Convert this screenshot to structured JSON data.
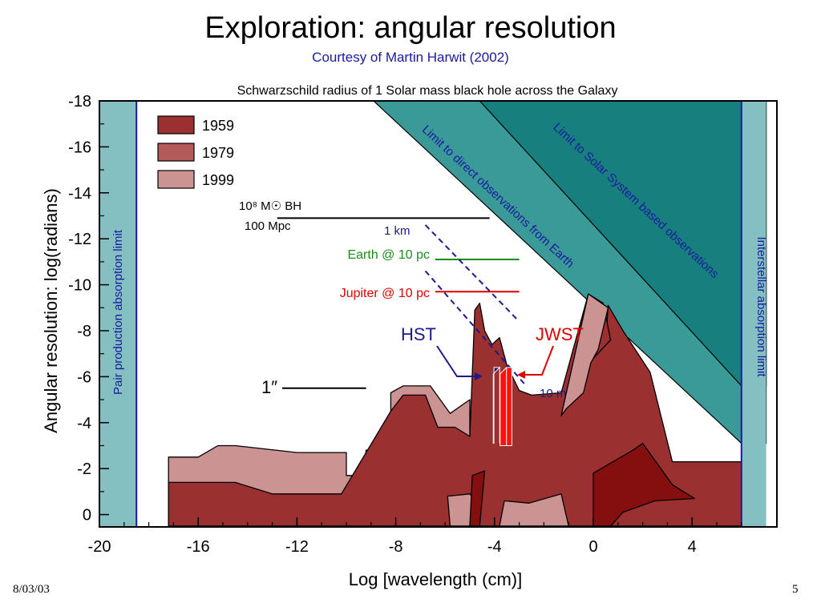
{
  "slide": {
    "title": "Exploration: angular resolution",
    "subtitle": "Courtesy of Martin Harwit (2002)",
    "date": "8/03/03",
    "page": "5"
  },
  "chart_data": {
    "type": "area",
    "title": "Schwarzschild radius of 1 Solar mass black hole across the Galaxy",
    "xlabel": "Log [wavelength (cm)]",
    "ylabel": "Angular resolution: log(radians)",
    "xlim": [
      -20,
      7
    ],
    "ylim": [
      0.5,
      -18
    ],
    "xticks": [
      "-20",
      "-16",
      "-12",
      "-8",
      "-4",
      "0",
      "4"
    ],
    "yticks": [
      "-18",
      "-16",
      "-14",
      "-12",
      "-10",
      "-8",
      "-6",
      "-4",
      "-2",
      "0"
    ],
    "legend_placement": "top-left",
    "legend": [
      {
        "label": "1959",
        "color": "#9b3030"
      },
      {
        "label": "1979",
        "color": "#b35a5a"
      },
      {
        "label": "1999",
        "color": "#cc9393"
      }
    ],
    "series": [
      {
        "name": "1999",
        "color": "#cc9393",
        "points": [
          [
            -17.2,
            0.5
          ],
          [
            -17.2,
            -2.5
          ],
          [
            -16,
            -2.5
          ],
          [
            -15.2,
            -3
          ],
          [
            -14.5,
            -3
          ],
          [
            -12,
            -2.7
          ],
          [
            -10,
            -2.7
          ],
          [
            -10,
            -1.7
          ],
          [
            -9.3,
            -1.7
          ],
          [
            -9.2,
            -2.8
          ],
          [
            -8.2,
            -2.8
          ],
          [
            -8.2,
            -5.3
          ],
          [
            -7.7,
            -5.6
          ],
          [
            -6.6,
            -5.6
          ],
          [
            -5.8,
            -4.4
          ],
          [
            -5,
            -5
          ],
          [
            -5,
            0.5
          ]
        ]
      },
      {
        "name": "1979",
        "color": "#9b3030",
        "points": [
          [
            -17.2,
            0.5
          ],
          [
            -17.2,
            -1.4
          ],
          [
            -14.5,
            -1.4
          ],
          [
            -13,
            -0.9
          ],
          [
            -10.2,
            -0.9
          ],
          [
            -8.2,
            -4.5
          ],
          [
            -7.7,
            -5.2
          ],
          [
            -6.8,
            -5.2
          ],
          [
            -6.3,
            -3.8
          ],
          [
            -5.6,
            -3.8
          ],
          [
            -5,
            -3.4
          ],
          [
            -4.8,
            -8.9
          ],
          [
            -4.6,
            -9.2
          ],
          [
            -4.4,
            -8
          ],
          [
            -4.2,
            -7.6
          ],
          [
            -4.1,
            -7.4
          ],
          [
            -3.8,
            -7.7
          ],
          [
            -3.5,
            -6.5
          ],
          [
            -3,
            -5.4
          ],
          [
            -2.5,
            -5.2
          ],
          [
            -1.3,
            -5.3
          ],
          [
            -0.2,
            -9.6
          ],
          [
            -0.1,
            -7.6
          ],
          [
            0.5,
            -7.5
          ],
          [
            0.6,
            -9.1
          ],
          [
            1.2,
            -8
          ],
          [
            2.3,
            -6.2
          ],
          [
            3.2,
            -2.3
          ],
          [
            6,
            -2.3
          ],
          [
            6,
            0.5
          ]
        ]
      },
      {
        "name": "1979-upper-ridge",
        "color": "#9b3030",
        "points": [
          [
            -0.2,
            -9.6
          ],
          [
            0.4,
            -9.2
          ],
          [
            0.7,
            -7.6
          ],
          [
            0,
            -6.8
          ],
          [
            -0.6,
            -6.9
          ]
        ]
      },
      {
        "name": "1999-upper",
        "color": "#cc9393",
        "points": [
          [
            -1.3,
            -4.3
          ],
          [
            -0.2,
            -9.6
          ],
          [
            0.6,
            -9
          ],
          [
            0.2,
            -7.2
          ],
          [
            -0.1,
            -6.6
          ],
          [
            -0.4,
            -5.3
          ],
          [
            -1.1,
            -4.6
          ]
        ]
      },
      {
        "name": "1999-submm",
        "color": "#cc9393",
        "points": [
          [
            -5.8,
            0.5
          ],
          [
            -5.9,
            -0.8
          ],
          [
            -5,
            -0.9
          ],
          [
            -4.6,
            -0.4
          ],
          [
            -4.6,
            0.5
          ]
        ]
      },
      {
        "name": "1999-radio",
        "color": "#cc9393",
        "points": [
          [
            -3.8,
            0.5
          ],
          [
            -3.6,
            -0.6
          ],
          [
            -2.6,
            -0.5
          ],
          [
            -1.3,
            -0.9
          ],
          [
            -1,
            0.5
          ]
        ]
      },
      {
        "name": "1959",
        "color": "#850f0f",
        "points": [
          [
            -5,
            0.5
          ],
          [
            -4.9,
            -1.7
          ],
          [
            -4.4,
            -1.9
          ],
          [
            -4.6,
            0.5
          ]
        ]
      },
      {
        "name": "1959-radio",
        "color": "#850f0f",
        "points": [
          [
            0,
            0.5
          ],
          [
            0,
            -1.8
          ],
          [
            1.6,
            -2.8
          ],
          [
            2,
            -3.1
          ],
          [
            3.2,
            -1.3
          ],
          [
            4.1,
            -0.7
          ],
          [
            2.5,
            -0.6
          ],
          [
            1.2,
            -0.1
          ],
          [
            0.7,
            0.5
          ]
        ]
      }
    ],
    "bands": [
      {
        "name": "Pair production absorption limit",
        "x": [
          -20,
          -18.5
        ]
      },
      {
        "name": "Interstellar absorption limit",
        "x": [
          6,
          7
        ]
      }
    ],
    "diagonal_limits": [
      {
        "name": "Limit to direct observations from Earth",
        "from": [
          -8.9,
          -18
        ],
        "to": [
          6,
          -3.1
        ]
      },
      {
        "name": "Limit to Solar System based observations",
        "from": [
          -4.6,
          -18
        ],
        "to": [
          6,
          -5.6
        ]
      }
    ],
    "reference_lines": [
      {
        "label": "10⁸ M☉ BH",
        "sublabel": "100 Mpc",
        "y": -12.9,
        "x": [
          -12.8,
          -4.2
        ],
        "color": "#000000"
      },
      {
        "label": "Earth @ 10 pc",
        "y": -11.1,
        "x": [
          -6.4,
          -3
        ],
        "color": "#1a8c1a"
      },
      {
        "label": "Jupiter @ 10 pc",
        "y": -9.7,
        "x": [
          -6.4,
          -3
        ],
        "color": "#e00000"
      },
      {
        "label": "1″",
        "y": -5.5,
        "x": [
          -12.6,
          -9.2
        ],
        "color": "#000000"
      }
    ],
    "dashed_lines": [
      {
        "label": "1 km",
        "from": [
          -6.8,
          -12.6
        ],
        "to": [
          -3,
          -8.4
        ]
      },
      {
        "label": "10 m",
        "from": [
          -6.8,
          -10.6
        ],
        "to": [
          -2.8,
          -5.7
        ]
      }
    ],
    "instruments": [
      {
        "name": "HST",
        "color": "#2e1660",
        "x": [
          -4.7,
          -3.7
        ],
        "y": [
          -3.1,
          -6.4
        ]
      },
      {
        "name": "JWST",
        "color": "#ff1010",
        "x": [
          -4.1,
          -3.3
        ],
        "y": [
          -3,
          -6.4
        ]
      }
    ]
  }
}
